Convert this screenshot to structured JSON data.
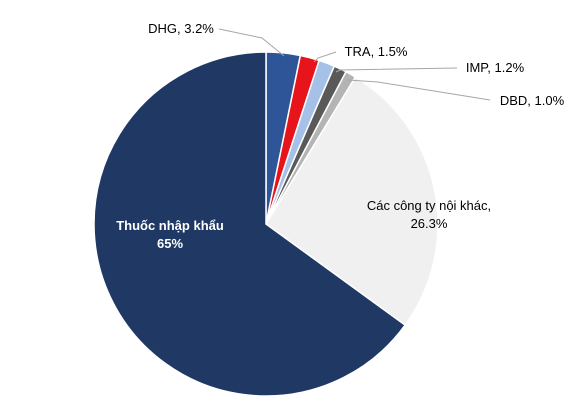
{
  "chart_data": {
    "type": "pie",
    "start_angle_deg": 0,
    "direction": "clockwise",
    "slices": [
      {
        "label": "DHG",
        "value": 3.2,
        "value_text": "3.2%",
        "color": "#2e5597"
      },
      {
        "label": "",
        "value": 1.8,
        "value_text": "",
        "color": "#e8141b"
      },
      {
        "label": "TRA",
        "value": 1.5,
        "value_text": "1.5%",
        "color": "#a6c1e8"
      },
      {
        "label": "IMP",
        "value": 1.2,
        "value_text": "1.2%",
        "color": "#595959"
      },
      {
        "label": "DBD",
        "value": 1.0,
        "value_text": "1.0%",
        "color": "#b4b4b4"
      },
      {
        "label": "Các công ty nội khác,",
        "value": 26.3,
        "value_text": "26.3%",
        "color": "#f0f0f0"
      },
      {
        "label": "Thuốc nhập khẩu",
        "value": 65,
        "value_text": "65%",
        "color": "#1f3864"
      }
    ]
  }
}
